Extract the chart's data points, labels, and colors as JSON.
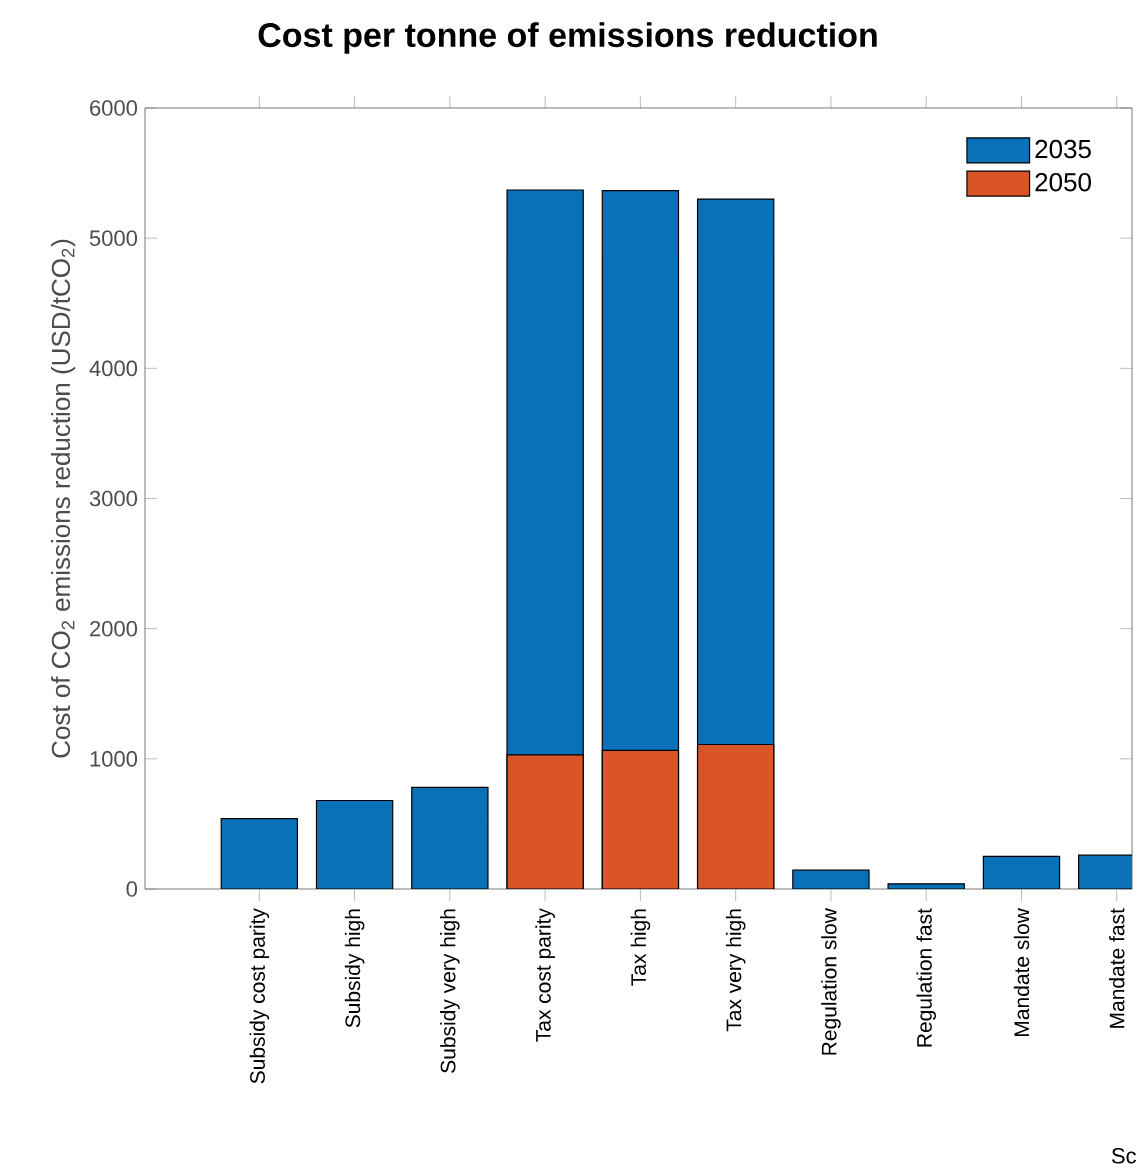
{
  "chart_data": {
    "type": "bar",
    "title": "Cost per tonne of emissions reduction",
    "ylabel": "Cost of CO$_{2}$ emissions reduction (USD/tCO$_{2}$)",
    "categories": [
      "Subsidy cost parity",
      "Subsidy high",
      "Subsidy very high",
      "Tax cost parity",
      "Tax high",
      "Tax very high",
      "Regulation slow",
      "Regulation fast",
      "Mandate slow",
      "Mandate fast"
    ],
    "series": [
      {
        "name": "2035",
        "color": "#0a71b9",
        "values": [
          540,
          680,
          780,
          5370,
          5365,
          5300,
          145,
          40,
          250,
          260
        ]
      },
      {
        "name": "2050",
        "color": "#d95427",
        "values": [
          null,
          null,
          null,
          1030,
          1065,
          1110,
          null,
          null,
          null,
          null
        ]
      }
    ],
    "ylim": [
      0,
      6000
    ],
    "yticks": [
      0,
      1000,
      2000,
      3000,
      4000,
      5000,
      6000
    ],
    "legend": "top right",
    "grid": false,
    "annotations": [
      "Sc"
    ]
  }
}
